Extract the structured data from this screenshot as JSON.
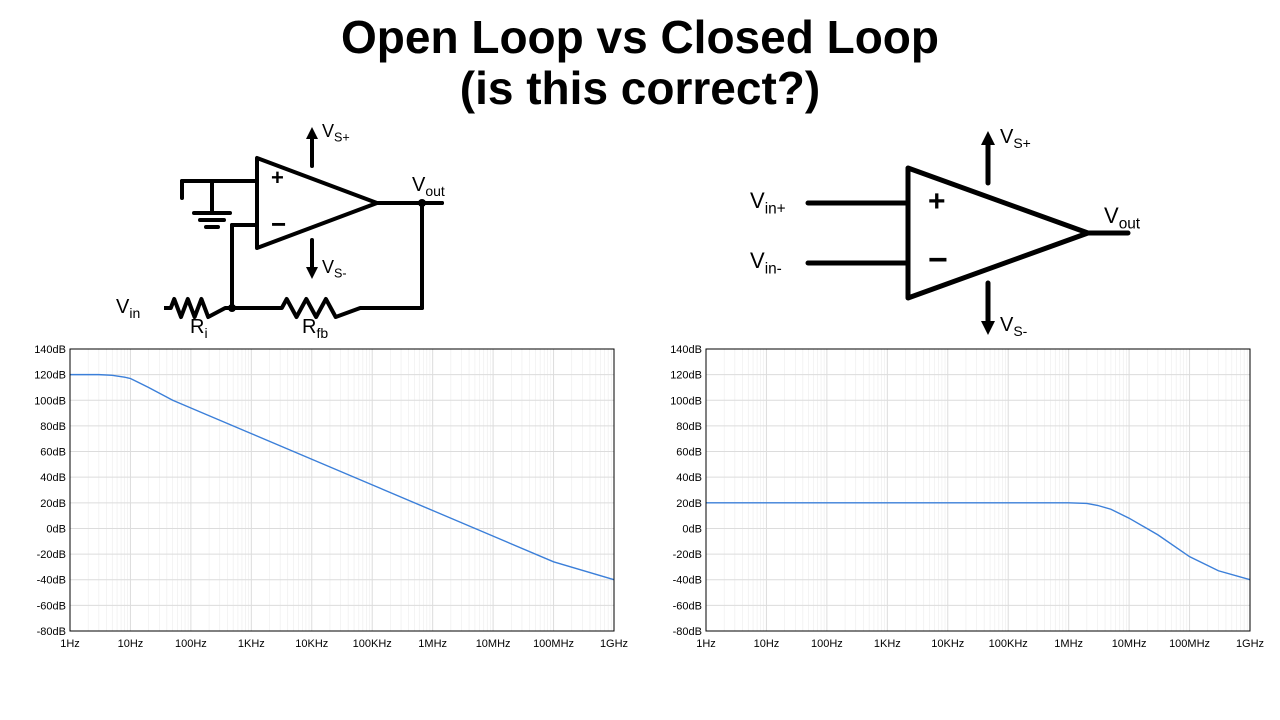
{
  "title_line1": "Open Loop vs Closed Loop",
  "title_line2": "(is this correct?)",
  "title_fontsize": 46,
  "title_weight": 900,
  "colors": {
    "background": "#ffffff",
    "text": "#000000",
    "axis": "#000000",
    "grid": "#dcdcdc",
    "grid_minor": "#ececec",
    "line": "#3b7fd9",
    "circuit_stroke": "#000000"
  },
  "circuit_left": {
    "labels": {
      "vsplus": "V",
      "vsplus_sub": "S+",
      "vsminus": "V",
      "vsminus_sub": "S-",
      "vout": "V",
      "vout_sub": "out",
      "vin": "V",
      "vin_sub": "in",
      "ri": "R",
      "ri_sub": "i",
      "rfb": "R",
      "rfb_sub": "fb",
      "plus": "+",
      "minus": "−"
    },
    "stroke_width": 4
  },
  "circuit_right": {
    "labels": {
      "vsplus": "V",
      "vsplus_sub": "S+",
      "vsminus": "V",
      "vsminus_sub": "S-",
      "vout": "V",
      "vout_sub": "out",
      "vinp": "V",
      "vinp_sub": "in+",
      "vinm": "V",
      "vinm_sub": "in-",
      "plus": "+",
      "minus": "−"
    },
    "stroke_width": 5
  },
  "chart_left": {
    "type": "line",
    "xscale": "log",
    "xlim": [
      1,
      1000000000
    ],
    "ylim": [
      -80,
      140
    ],
    "ytick_step": 20,
    "yticks": [
      140,
      120,
      100,
      80,
      60,
      40,
      20,
      0,
      -20,
      -40,
      -60,
      -80
    ],
    "ylabel_suffix": "dB",
    "xticks": [
      1,
      10,
      100,
      1000,
      10000,
      100000,
      1000000,
      10000000,
      100000000,
      1000000000
    ],
    "xlabels": [
      "1Hz",
      "10Hz",
      "100Hz",
      "1KHz",
      "10KHz",
      "100KHz",
      "1MHz",
      "10MHz",
      "100MHz",
      "1GHz"
    ],
    "line_color": "#3b7fd9",
    "line_width": 1.4,
    "tick_fontsize": 11,
    "grid_major": "#dcdcdc",
    "grid_minor": "#ececec",
    "data": [
      [
        1,
        120
      ],
      [
        3,
        120
      ],
      [
        5,
        119.5
      ],
      [
        8,
        118
      ],
      [
        10,
        117
      ],
      [
        20,
        110
      ],
      [
        50,
        100
      ],
      [
        100,
        94
      ],
      [
        1000,
        74
      ],
      [
        10000,
        54
      ],
      [
        100000,
        34
      ],
      [
        1000000,
        14
      ],
      [
        10000000,
        -6
      ],
      [
        100000000,
        -26
      ],
      [
        1000000000,
        -40
      ]
    ]
  },
  "chart_right": {
    "type": "line",
    "xscale": "log",
    "xlim": [
      1,
      1000000000
    ],
    "ylim": [
      -80,
      140
    ],
    "ytick_step": 20,
    "yticks": [
      140,
      120,
      100,
      80,
      60,
      40,
      20,
      0,
      -20,
      -40,
      -60,
      -80
    ],
    "ylabel_suffix": "dB",
    "xticks": [
      1,
      10,
      100,
      1000,
      10000,
      100000,
      1000000,
      10000000,
      100000000,
      1000000000
    ],
    "xlabels": [
      "1Hz",
      "10Hz",
      "100Hz",
      "1KHz",
      "10KHz",
      "100KHz",
      "1MHz",
      "10MHz",
      "100MHz",
      "1GHz"
    ],
    "line_color": "#3b7fd9",
    "line_width": 1.4,
    "tick_fontsize": 11,
    "grid_major": "#dcdcdc",
    "grid_minor": "#ececec",
    "data": [
      [
        1,
        20
      ],
      [
        1000,
        20
      ],
      [
        100000,
        20
      ],
      [
        1000000,
        20
      ],
      [
        2000000,
        19.5
      ],
      [
        3000000,
        18
      ],
      [
        5000000,
        15
      ],
      [
        10000000,
        8
      ],
      [
        30000000,
        -5
      ],
      [
        100000000,
        -22
      ],
      [
        300000000,
        -33
      ],
      [
        1000000000,
        -40
      ]
    ]
  }
}
